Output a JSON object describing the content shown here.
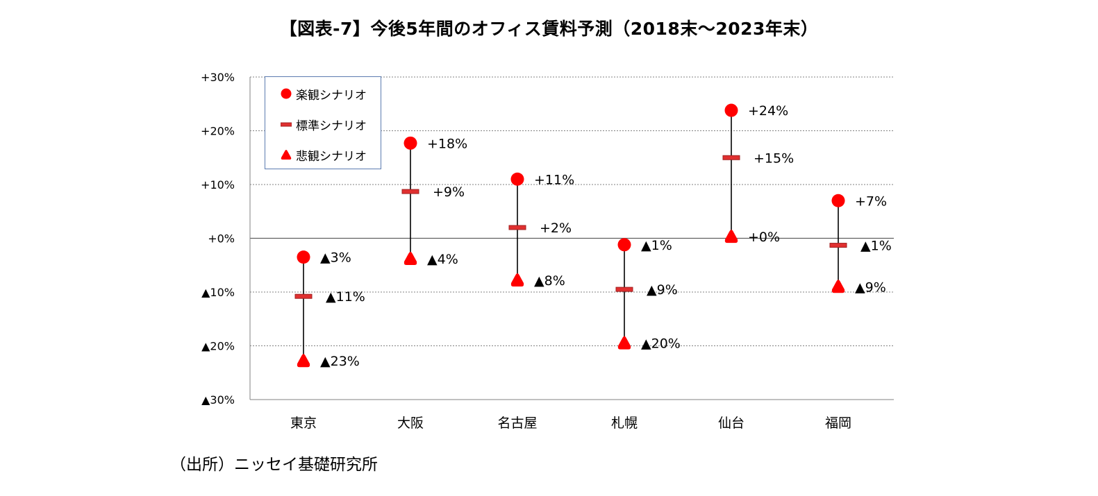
{
  "title": "【図表-7】今後5年間のオフィス賃料予測（2018末～2023年末）",
  "source": "（出所）ニッセイ基礎研究所",
  "colors": {
    "marker": "#ff0000",
    "standard_marker": "#e03030",
    "standard_border": "#a02020",
    "range_line": "#000000",
    "grid": "#808080",
    "legend_border": "#5b7bb0"
  },
  "legend": {
    "items": [
      {
        "label": "楽観シナリオ",
        "marker": "circle"
      },
      {
        "label": "標準シナリオ",
        "marker": "dash"
      },
      {
        "label": "悲観シナリオ",
        "marker": "triangle"
      }
    ]
  },
  "chart_data": {
    "type": "scatter",
    "title": "【図表-7】今後5年間のオフィス賃料予測（2018末～2023年末）",
    "xlabel": "",
    "ylabel": "",
    "ylim": [
      -30,
      30
    ],
    "y_tick_values": [
      30,
      20,
      10,
      0,
      -10,
      -20,
      -30
    ],
    "y_tick_labels": [
      "+30%",
      "+20%",
      "+10%",
      "+0%",
      "▲10%",
      "▲20%",
      "▲30%"
    ],
    "grid": true,
    "legend_position": "top-left",
    "categories": [
      "東京",
      "大阪",
      "名古屋",
      "札幌",
      "仙台",
      "福岡"
    ],
    "series": [
      {
        "name": "楽観シナリオ",
        "marker": "circle",
        "values": [
          -3.5,
          17.7,
          11.0,
          -1.2,
          23.8,
          7.0
        ],
        "data_labels": [
          "▲3%",
          "+18%",
          "+11%",
          "▲1%",
          "+24%",
          "+7%"
        ]
      },
      {
        "name": "標準シナリオ",
        "marker": "dash",
        "values": [
          -10.8,
          8.7,
          2.0,
          -9.5,
          15.0,
          -1.3
        ],
        "data_labels": [
          "▲11%",
          "+9%",
          "+2%",
          "▲9%",
          "+15%",
          "▲1%"
        ]
      },
      {
        "name": "悲観シナリオ",
        "marker": "triangle",
        "values": [
          -22.8,
          -3.8,
          -7.8,
          -19.5,
          0.3,
          -9.0
        ],
        "data_labels": [
          "▲23%",
          "▲4%",
          "▲8%",
          "▲20%",
          "+0%",
          "▲9%"
        ]
      }
    ]
  }
}
